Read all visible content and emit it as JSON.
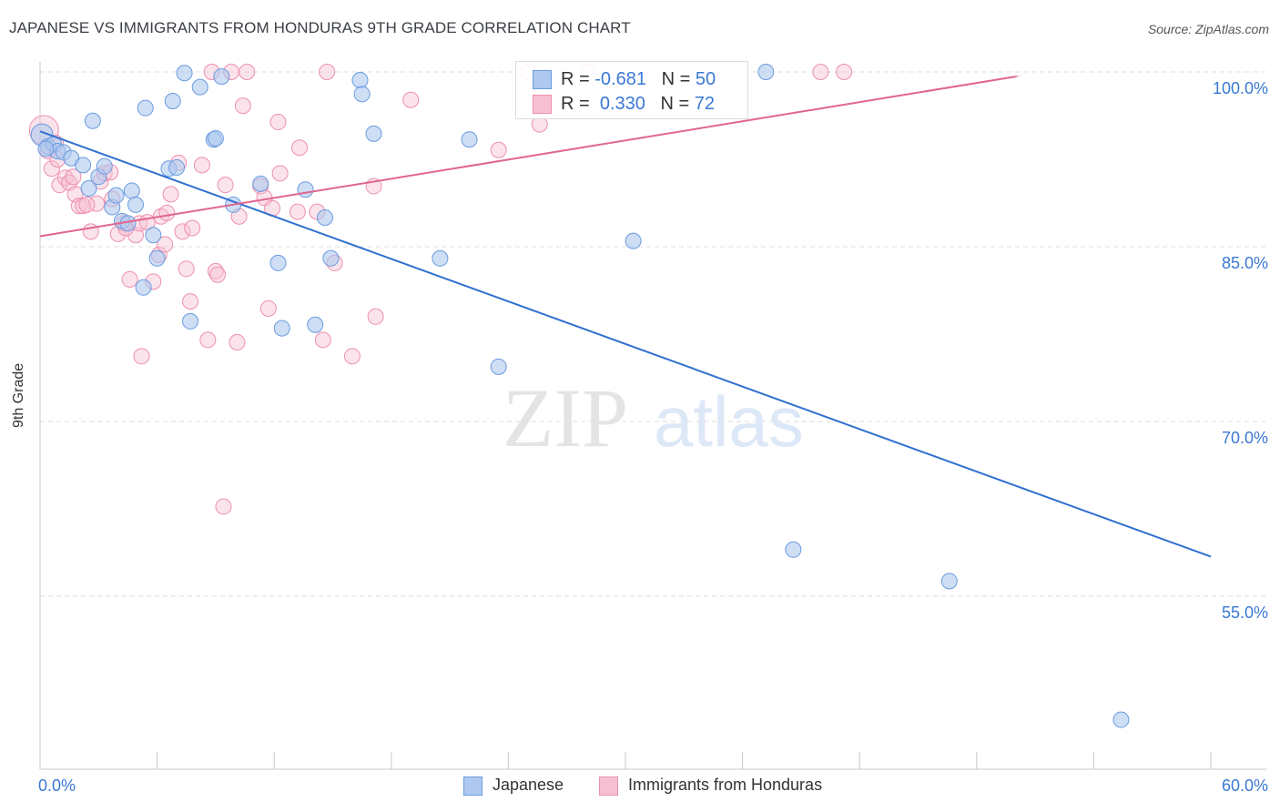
{
  "title": "JAPANESE VS IMMIGRANTS FROM HONDURAS 9TH GRADE CORRELATION CHART",
  "source": "Source: ZipAtlas.com",
  "watermark": {
    "zip": "ZIP",
    "atlas": "atlas"
  },
  "legend_top": {
    "rows": [
      {
        "r_label": "R = ",
        "r_value": "-0.681",
        "n_label": "N = ",
        "n_value": "50"
      },
      {
        "r_label": "R = ",
        "r_value": "0.330",
        "n_label": "N = ",
        "n_value": "72"
      }
    ]
  },
  "legend_bottom": [
    "Japanese",
    "Immigrants from Honduras"
  ],
  "colors": {
    "japanese_fill": "#aec8ef",
    "japanese_stroke": "#6a9be0",
    "japanese_line": "#3070d0",
    "honduras_fill": "#f7c0d2",
    "honduras_stroke": "#ee8fae",
    "honduras_line": "#e0658f",
    "tick_label": "#3a78d4",
    "grid": "#dddddd"
  },
  "chart_data": {
    "type": "scatter",
    "title": "JAPANESE VS IMMIGRANTS FROM HONDURAS 9TH GRADE CORRELATION CHART",
    "xlabel": "",
    "ylabel": "9th Grade",
    "xlim": [
      0,
      60
    ],
    "ylim": [
      40,
      101
    ],
    "x_tick_labels": [
      "0.0%",
      "60.0%"
    ],
    "y_ticks": [
      55,
      70,
      85,
      100
    ],
    "y_tick_labels": [
      "55.0%",
      "70.0%",
      "85.0%",
      "100.0%"
    ],
    "grid": "horizontal dashed",
    "series": [
      {
        "name": "Japanese",
        "r": -0.681,
        "n": 50,
        "trend": {
          "x": [
            0,
            60
          ],
          "y": [
            94.9,
            58.4
          ]
        },
        "points": [
          [
            0.1,
            94.6
          ],
          [
            0.4,
            93.6
          ],
          [
            0.7,
            93.8
          ],
          [
            0.9,
            93.2
          ],
          [
            1.2,
            93.1
          ],
          [
            1.6,
            92.6
          ],
          [
            2.2,
            92.0
          ],
          [
            2.5,
            90.0
          ],
          [
            2.7,
            95.8
          ],
          [
            3.0,
            91.0
          ],
          [
            3.3,
            91.9
          ],
          [
            3.7,
            88.4
          ],
          [
            3.9,
            89.4
          ],
          [
            4.2,
            87.2
          ],
          [
            4.5,
            87.0
          ],
          [
            4.7,
            89.8
          ],
          [
            4.9,
            88.6
          ],
          [
            5.3,
            81.5
          ],
          [
            5.4,
            96.9
          ],
          [
            5.8,
            86.0
          ],
          [
            6.0,
            84.0
          ],
          [
            6.6,
            91.7
          ],
          [
            6.8,
            97.5
          ],
          [
            7.0,
            91.8
          ],
          [
            7.4,
            99.9
          ],
          [
            7.7,
            78.6
          ],
          [
            8.2,
            98.7
          ],
          [
            8.9,
            94.2
          ],
          [
            9.0,
            94.3
          ],
          [
            9.3,
            99.6
          ],
          [
            9.9,
            88.6
          ],
          [
            11.3,
            90.4
          ],
          [
            12.2,
            83.6
          ],
          [
            12.4,
            78.0
          ],
          [
            13.6,
            89.9
          ],
          [
            14.1,
            78.3
          ],
          [
            14.6,
            87.5
          ],
          [
            14.9,
            84.0
          ],
          [
            16.4,
            99.3
          ],
          [
            16.5,
            98.1
          ],
          [
            17.1,
            94.7
          ],
          [
            20.5,
            84.0
          ],
          [
            22.0,
            94.2
          ],
          [
            23.5,
            74.7
          ],
          [
            30.4,
            85.5
          ],
          [
            37.2,
            100.0
          ],
          [
            38.6,
            59.0
          ],
          [
            46.6,
            56.3
          ],
          [
            55.4,
            44.4
          ],
          [
            0.3,
            93.4
          ]
        ]
      },
      {
        "name": "Immigrants from Honduras",
        "r": 0.33,
        "n": 72,
        "trend": {
          "x": [
            0,
            50
          ],
          "y": [
            85.9,
            99.6
          ]
        },
        "points": [
          [
            0.2,
            95.0
          ],
          [
            0.4,
            93.2
          ],
          [
            0.6,
            91.7
          ],
          [
            0.9,
            92.5
          ],
          [
            1.0,
            90.3
          ],
          [
            1.3,
            90.9
          ],
          [
            1.5,
            90.5
          ],
          [
            1.8,
            89.5
          ],
          [
            2.0,
            88.5
          ],
          [
            2.2,
            88.5
          ],
          [
            2.6,
            86.3
          ],
          [
            2.9,
            88.7
          ],
          [
            3.1,
            90.6
          ],
          [
            3.3,
            91.3
          ],
          [
            3.7,
            89.1
          ],
          [
            4.0,
            86.1
          ],
          [
            4.3,
            87.0
          ],
          [
            4.6,
            82.2
          ],
          [
            4.9,
            86.0
          ],
          [
            5.1,
            87.0
          ],
          [
            5.2,
            75.6
          ],
          [
            5.5,
            87.1
          ],
          [
            5.8,
            82.0
          ],
          [
            6.1,
            84.3
          ],
          [
            6.2,
            87.6
          ],
          [
            6.4,
            85.2
          ],
          [
            6.7,
            89.5
          ],
          [
            7.1,
            92.2
          ],
          [
            7.3,
            86.3
          ],
          [
            7.5,
            83.1
          ],
          [
            7.7,
            80.3
          ],
          [
            7.8,
            86.6
          ],
          [
            8.3,
            92.0
          ],
          [
            8.6,
            77.0
          ],
          [
            8.8,
            100.0
          ],
          [
            9.0,
            82.9
          ],
          [
            9.1,
            82.6
          ],
          [
            9.4,
            62.7
          ],
          [
            9.5,
            90.3
          ],
          [
            9.8,
            100.0
          ],
          [
            10.1,
            76.8
          ],
          [
            10.2,
            87.6
          ],
          [
            10.4,
            97.1
          ],
          [
            10.6,
            100.0
          ],
          [
            11.3,
            90.2
          ],
          [
            11.5,
            89.2
          ],
          [
            11.7,
            79.7
          ],
          [
            11.9,
            88.3
          ],
          [
            12.2,
            95.7
          ],
          [
            12.3,
            91.3
          ],
          [
            13.2,
            88.0
          ],
          [
            13.3,
            93.5
          ],
          [
            14.2,
            88.0
          ],
          [
            14.5,
            77.0
          ],
          [
            14.7,
            100.0
          ],
          [
            15.1,
            83.6
          ],
          [
            16.0,
            75.6
          ],
          [
            17.1,
            90.2
          ],
          [
            17.2,
            79.0
          ],
          [
            19.0,
            97.6
          ],
          [
            23.5,
            93.3
          ],
          [
            25.0,
            100.0
          ],
          [
            25.6,
            95.5
          ],
          [
            28.1,
            100.0
          ],
          [
            40.0,
            100.0
          ],
          [
            41.2,
            100.0
          ],
          [
            1.7,
            91.0
          ],
          [
            3.6,
            91.4
          ],
          [
            6.5,
            87.9
          ],
          [
            4.4,
            86.6
          ],
          [
            0.8,
            93.9
          ],
          [
            2.4,
            88.6
          ]
        ]
      }
    ]
  }
}
